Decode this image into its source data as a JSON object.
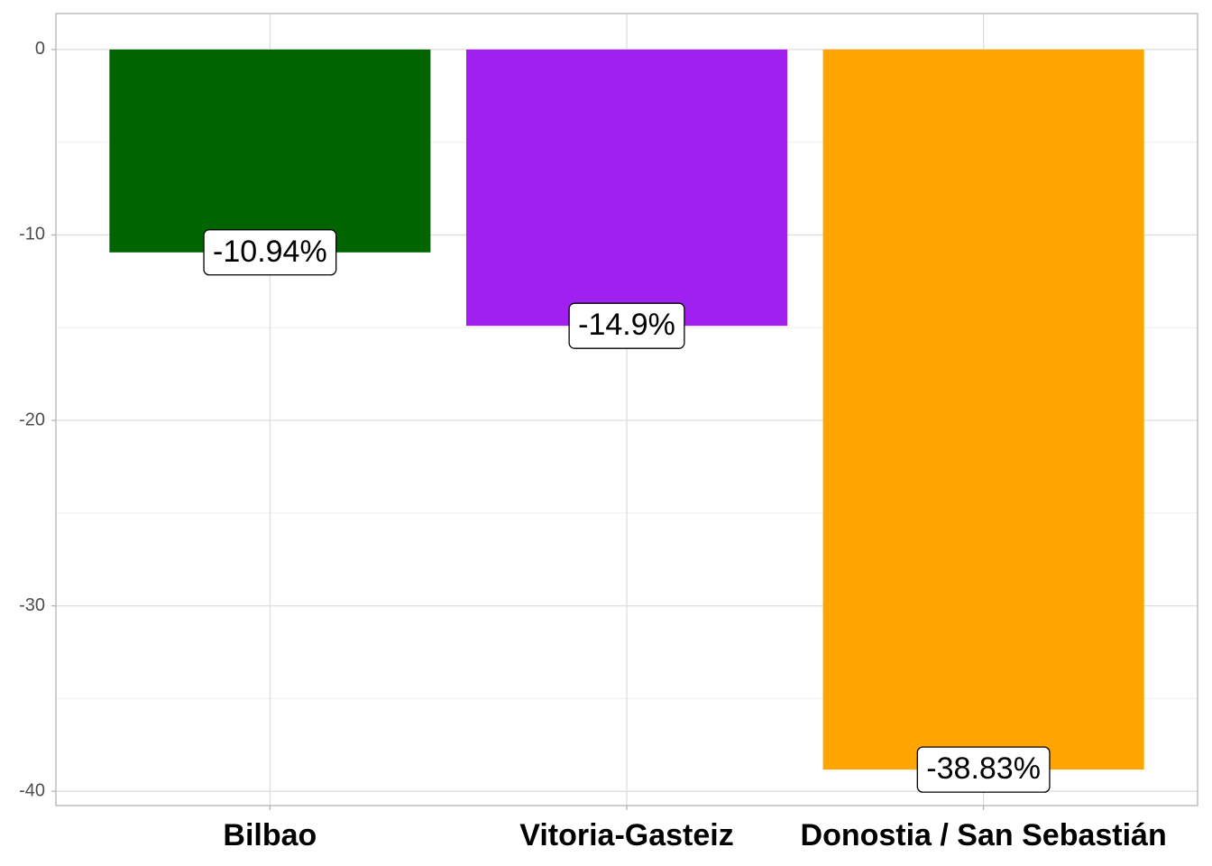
{
  "chart_data": {
    "type": "bar",
    "categories": [
      "Bilbao",
      "Vitoria-Gasteiz",
      "Donostia / San Sebastián"
    ],
    "values": [
      -10.94,
      -14.9,
      -38.83
    ],
    "value_labels": [
      "-10.94%",
      "-14.9%",
      "-38.83%"
    ],
    "colors": [
      "#006400",
      "#a020f0",
      "#ffa500"
    ],
    "ylim": [
      -40.77,
      1.94
    ],
    "yticks": [
      0,
      -10,
      -20,
      -30,
      -40
    ],
    "grid": true
  }
}
